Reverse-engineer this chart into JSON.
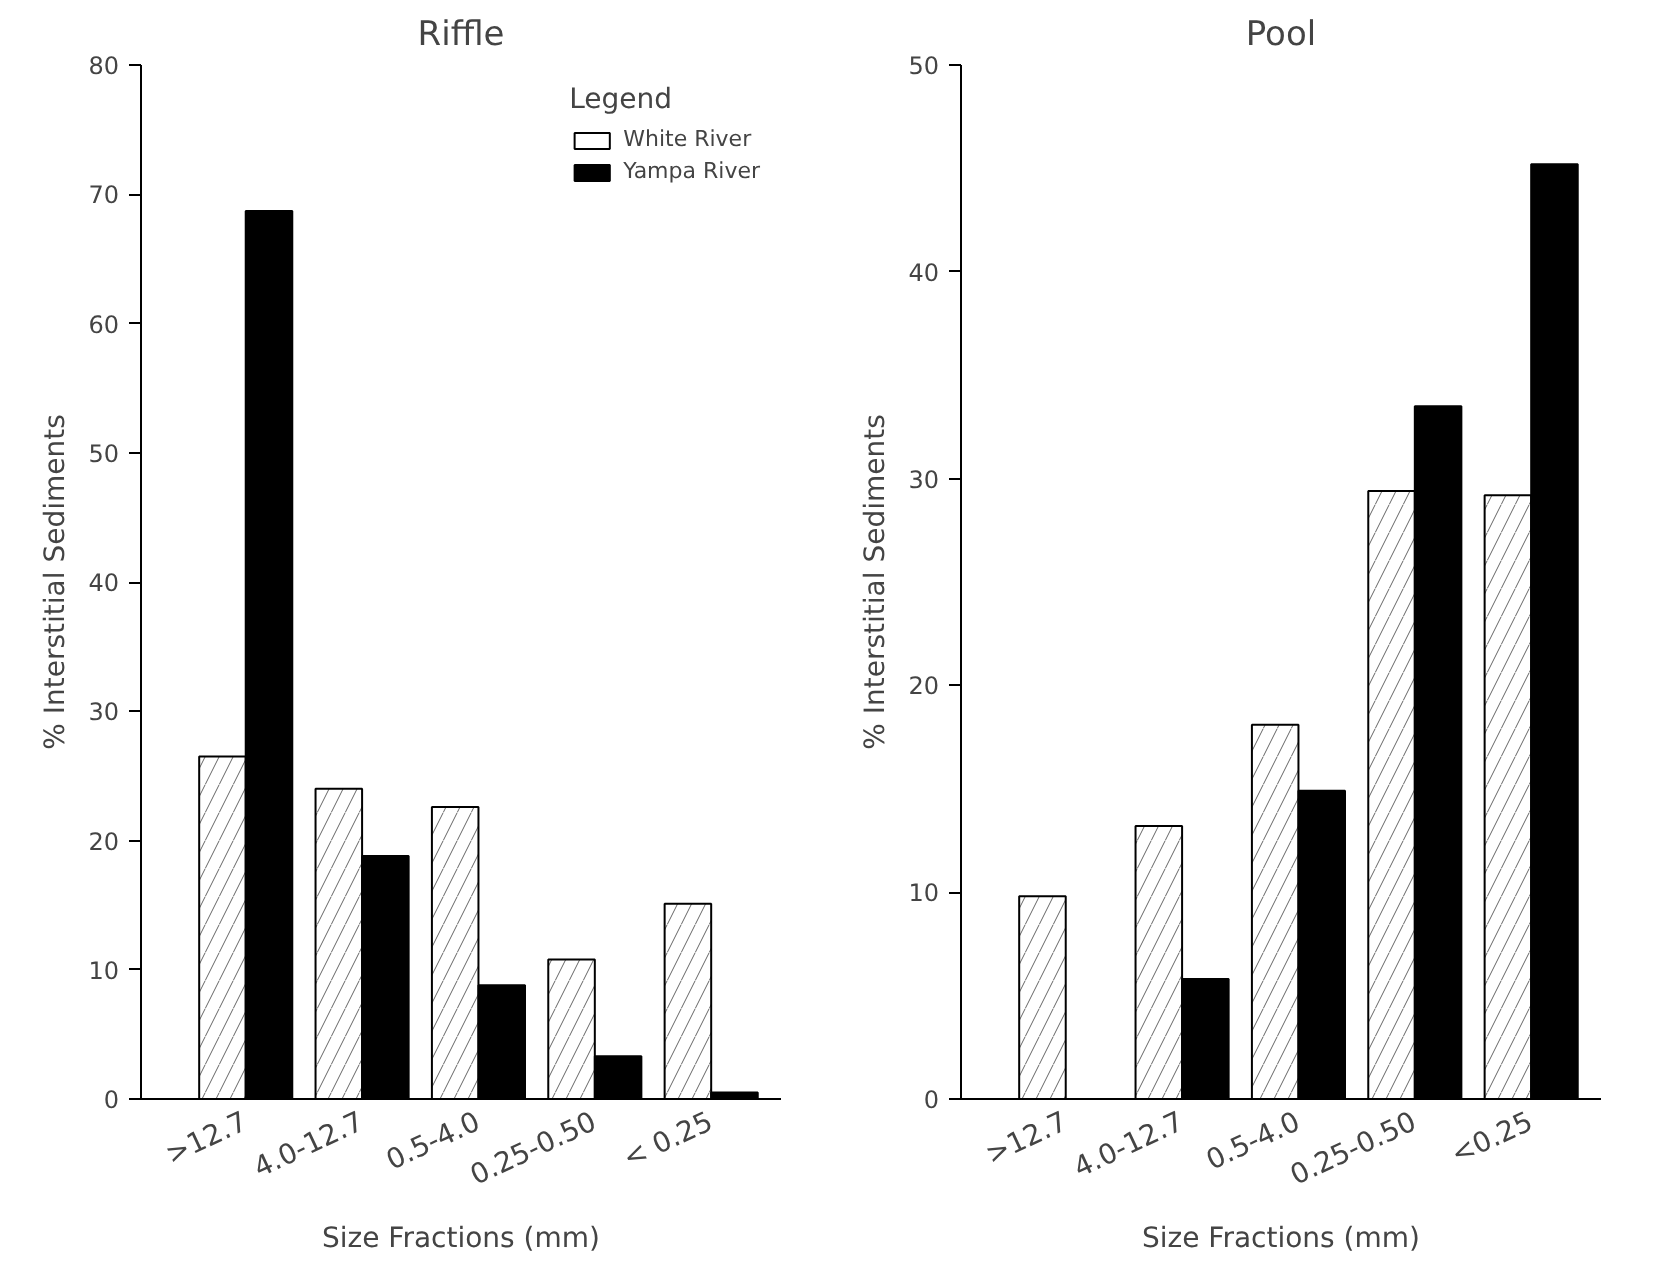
{
  "chart_data": [
    {
      "type": "bar",
      "title": "Riffle",
      "xlabel": "Size Fractions (mm)",
      "ylabel": "% Interstitial Sediments",
      "legend_title": "Legend",
      "legend": "top right",
      "categories": [
        ">12.7",
        "4.0-12.7",
        "0.5-4.0",
        "0.25-0.50",
        "< 0.25"
      ],
      "series": [
        {
          "name": "White River",
          "color": "#ffffff",
          "values": [
            26.5,
            24.0,
            22.6,
            10.8,
            15.1
          ]
        },
        {
          "name": "Yampa River",
          "color": "#000000",
          "values": [
            68.7,
            18.8,
            8.8,
            3.3,
            0.5
          ]
        }
      ],
      "ylim": [
        0,
        80
      ],
      "yticks": [
        0,
        10,
        20,
        30,
        40,
        50,
        60,
        70,
        80
      ]
    },
    {
      "type": "bar",
      "title": "Pool",
      "xlabel": "Size Fractions (mm)",
      "ylabel": "% Interstitial Sediments",
      "categories": [
        ">12.7",
        "4.0-12.7",
        "0.5-4.0",
        "0.25-0.50",
        "<0.25"
      ],
      "series": [
        {
          "color": "#ffffff",
          "values": [
            9.8,
            13.2,
            18.1,
            29.4,
            29.2
          ]
        },
        {
          "color": "#000000",
          "values": [
            null,
            5.8,
            14.9,
            33.5,
            45.2
          ]
        }
      ],
      "ylim": [
        0,
        50
      ],
      "yticks": [
        0,
        10,
        20,
        30,
        40,
        50
      ]
    }
  ]
}
